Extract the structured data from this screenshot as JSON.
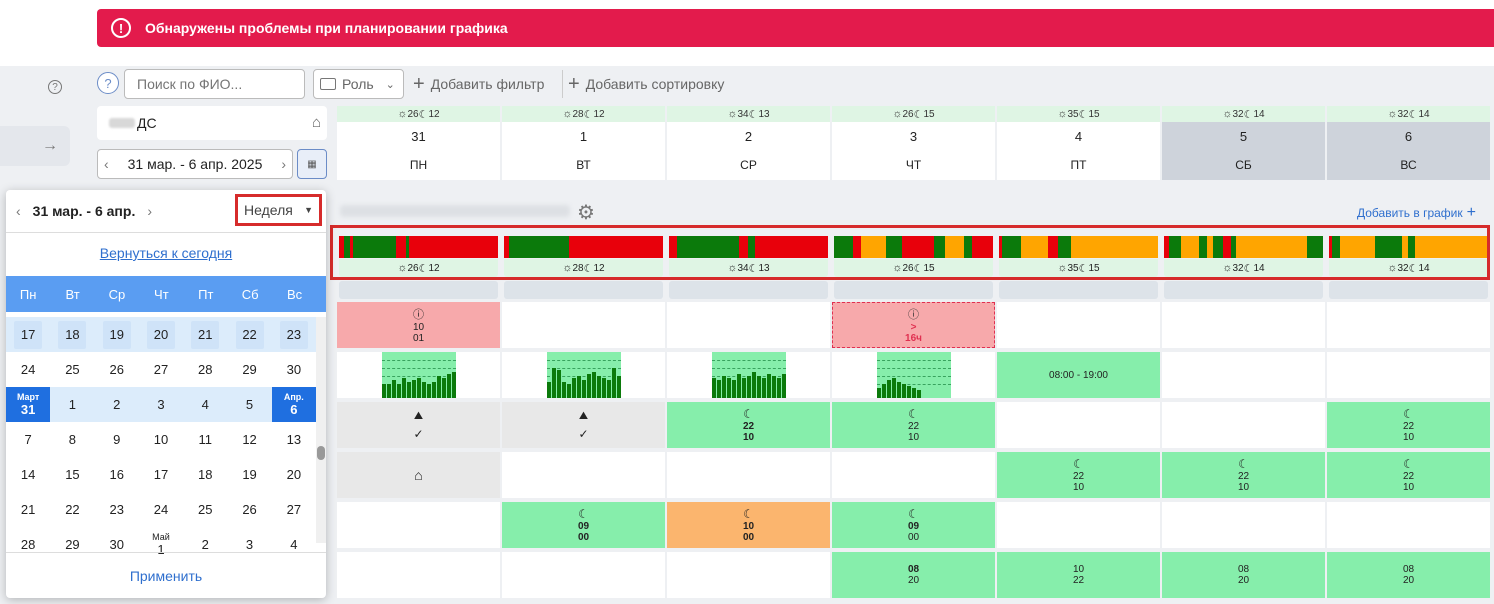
{
  "banner": {
    "icon": "alert-circle-icon",
    "text": "Обнаружены проблемы при планировании графика"
  },
  "toolbar": {
    "search_placeholder": "Поиск по ФИО...",
    "role_label": "Роль",
    "add_filter": "Добавить фильтр",
    "add_sort": "Добавить сортировку"
  },
  "org": {
    "name": "ДС"
  },
  "period": {
    "label": "31 мар. - 6 апр. 2025"
  },
  "days": [
    {
      "num": "31",
      "wd": "ПН",
      "t_day": "26",
      "t_night": "12",
      "weekend": false
    },
    {
      "num": "1",
      "wd": "ВТ",
      "t_day": "28",
      "t_night": "12",
      "weekend": false
    },
    {
      "num": "2",
      "wd": "СР",
      "t_day": "34",
      "t_night": "13",
      "weekend": false
    },
    {
      "num": "3",
      "wd": "ЧТ",
      "t_day": "26",
      "t_night": "15",
      "weekend": false
    },
    {
      "num": "4",
      "wd": "ПТ",
      "t_day": "35",
      "t_night": "15",
      "weekend": false
    },
    {
      "num": "5",
      "wd": "СБ",
      "t_day": "32",
      "t_night": "14",
      "weekend": true
    },
    {
      "num": "6",
      "wd": "ВС",
      "t_day": "32",
      "t_night": "14",
      "weekend": true
    }
  ],
  "schedule": {
    "add_to_graph": "Добавить в график"
  },
  "colors": {
    "red": "#e8000b",
    "green": "#0b7a0b",
    "orange": "#ffa500",
    "accent": "#2f6fce",
    "banner": "#e31b4c"
  },
  "cells": {
    "r1c1_top": "10",
    "r1c1_bot": "01",
    "r1c4_top": ">",
    "r1c4_bot": "16ч",
    "r2c5": "08:00 - 19:00",
    "r3c3_top": "22",
    "r3c3_bot": "10",
    "r3c4_top": "22",
    "r3c4_bot": "10",
    "r3c7_top": "22",
    "r3c7_bot": "10",
    "r4c5_top": "22",
    "r4c5_bot": "10",
    "r4c6_top": "22",
    "r4c6_bot": "10",
    "r4c7_top": "22",
    "r4c7_bot": "10",
    "r5c2_top": "09",
    "r5c2_bot": "00",
    "r5c3_top": "10",
    "r5c3_bot": "00",
    "r5c4_top": "09",
    "r5c4_bot": "00",
    "r6c4_top": "08",
    "r6c4_bot": "20",
    "r6c5_top": "10",
    "r6c5_bot": "22",
    "r6c6_top": "08",
    "r6c6_bot": "20",
    "r6c7_top": "08",
    "r6c7_bot": "20"
  },
  "calendar": {
    "title": "31 мар. - 6 апр.",
    "view": "Неделя",
    "back_today": "Вернуться к сегодня",
    "weekdays": [
      "Пн",
      "Вт",
      "Ср",
      "Чт",
      "Пт",
      "Сб",
      "Вс"
    ],
    "month_march": "Март",
    "month_april": "Апр.",
    "month_may": "Май",
    "rows": [
      [
        "17",
        "18",
        "19",
        "20",
        "21",
        "22",
        "23"
      ],
      [
        "24",
        "25",
        "26",
        "27",
        "28",
        "29",
        "30"
      ],
      [
        "31",
        "1",
        "2",
        "3",
        "4",
        "5",
        "6"
      ],
      [
        "7",
        "8",
        "9",
        "10",
        "11",
        "12",
        "13"
      ],
      [
        "14",
        "15",
        "16",
        "17",
        "18",
        "19",
        "20"
      ],
      [
        "21",
        "22",
        "23",
        "24",
        "25",
        "26",
        "27"
      ],
      [
        "28",
        "29",
        "30",
        "1",
        "2",
        "3",
        "4"
      ]
    ],
    "apply": "Применить"
  }
}
